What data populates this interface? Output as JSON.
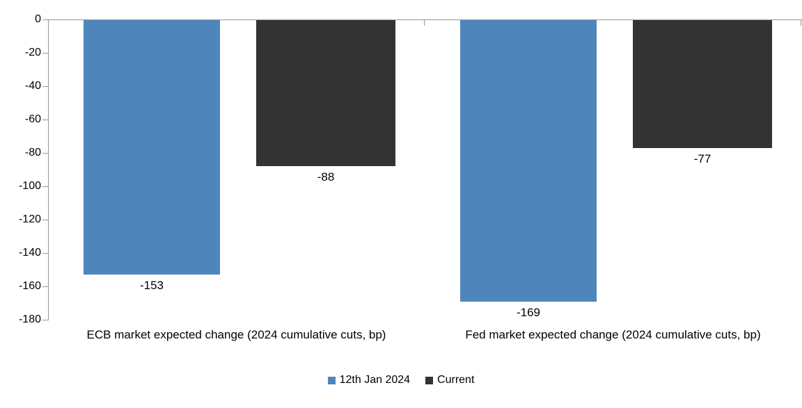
{
  "chart_data": {
    "type": "bar",
    "orientation": "vertical",
    "title": "",
    "categories": [
      "ECB market expected change (2024 cumulative cuts, bp)",
      "Fed market expected change (2024 cumulative cuts, bp)"
    ],
    "series": [
      {
        "name": "12th Jan 2024",
        "color": "#4E86BC",
        "values": [
          -153,
          -169
        ]
      },
      {
        "name": "Current",
        "color": "#333333",
        "values": [
          -88,
          -77
        ]
      }
    ],
    "ylim": [
      -180,
      0
    ],
    "yticks": [
      0,
      -20,
      -40,
      -60,
      -80,
      -100,
      -120,
      -140,
      -160,
      -180
    ],
    "show_data_labels": true,
    "data_label_color": "#000000",
    "grid": false,
    "legend_position": "bottom",
    "axis_color": "#969696",
    "text_color": "#000000",
    "background": "#FFFFFF"
  }
}
